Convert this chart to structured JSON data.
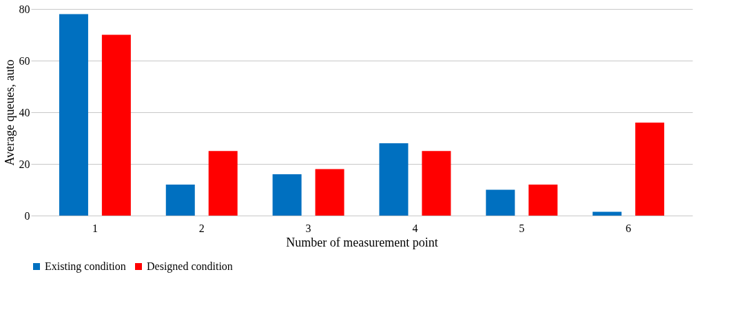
{
  "chart_data": {
    "type": "bar",
    "xlabel": "Number of measurement point",
    "ylabel": "Average queues, auto",
    "categories": [
      "1",
      "2",
      "3",
      "4",
      "5",
      "6"
    ],
    "series": [
      {
        "name": "Existing condition",
        "color": "#0070c0",
        "values": [
          78,
          12,
          16,
          28,
          10,
          1.5
        ]
      },
      {
        "name": "Designed condition",
        "color": "#ff0000",
        "values": [
          70,
          25,
          18,
          25,
          12,
          36
        ]
      }
    ],
    "ylim": [
      0,
      80
    ],
    "yticks": [
      0,
      20,
      40,
      60,
      80
    ],
    "grid": "y",
    "legend": "bottom"
  }
}
